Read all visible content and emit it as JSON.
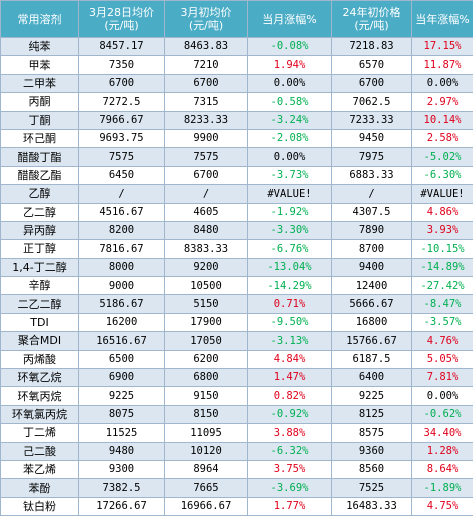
{
  "headers": [
    "常用溶剂",
    "3月28日均价\n(元/吨)",
    "3月初均价\n(元/吨)",
    "当月涨幅%",
    "24年初价格\n(元/吨)",
    "当年涨幅%"
  ],
  "rows": [
    {
      "name": "纯苯",
      "p1": "8457.17",
      "p2": "8463.83",
      "m": "-0.08%",
      "p3": "7218.83",
      "y": "17.15%"
    },
    {
      "name": "甲苯",
      "p1": "7350",
      "p2": "7210",
      "m": "1.94%",
      "p3": "6570",
      "y": "11.87%"
    },
    {
      "name": "二甲苯",
      "p1": "6700",
      "p2": "6700",
      "m": "0.00%",
      "p3": "6700",
      "y": "0.00%"
    },
    {
      "name": "丙酮",
      "p1": "7272.5",
      "p2": "7315",
      "m": "-0.58%",
      "p3": "7062.5",
      "y": "2.97%"
    },
    {
      "name": "丁酮",
      "p1": "7966.67",
      "p2": "8233.33",
      "m": "-3.24%",
      "p3": "7233.33",
      "y": "10.14%"
    },
    {
      "name": "环己酮",
      "p1": "9693.75",
      "p2": "9900",
      "m": "-2.08%",
      "p3": "9450",
      "y": "2.58%"
    },
    {
      "name": "醋酸丁酯",
      "p1": "7575",
      "p2": "7575",
      "m": "0.00%",
      "p3": "7975",
      "y": "-5.02%"
    },
    {
      "name": "醋酸乙酯",
      "p1": "6450",
      "p2": "6700",
      "m": "-3.73%",
      "p3": "6883.33",
      "y": "-6.30%"
    },
    {
      "name": "乙醇",
      "p1": "/",
      "p2": "/",
      "m": "#VALUE!",
      "p3": "/",
      "y": "#VALUE!"
    },
    {
      "name": "乙二醇",
      "p1": "4516.67",
      "p2": "4605",
      "m": "-1.92%",
      "p3": "4307.5",
      "y": "4.86%"
    },
    {
      "name": "异丙醇",
      "p1": "8200",
      "p2": "8480",
      "m": "-3.30%",
      "p3": "7890",
      "y": "3.93%"
    },
    {
      "name": "正丁醇",
      "p1": "7816.67",
      "p2": "8383.33",
      "m": "-6.76%",
      "p3": "8700",
      "y": "-10.15%"
    },
    {
      "name": "1,4-丁二醇",
      "p1": "8000",
      "p2": "9200",
      "m": "-13.04%",
      "p3": "9400",
      "y": "-14.89%"
    },
    {
      "name": "辛醇",
      "p1": "9000",
      "p2": "10500",
      "m": "-14.29%",
      "p3": "12400",
      "y": "-27.42%"
    },
    {
      "name": "二乙二醇",
      "p1": "5186.67",
      "p2": "5150",
      "m": "0.71%",
      "p3": "5666.67",
      "y": "-8.47%"
    },
    {
      "name": "TDI",
      "p1": "16200",
      "p2": "17900",
      "m": "-9.50%",
      "p3": "16800",
      "y": "-3.57%"
    },
    {
      "name": "聚合MDI",
      "p1": "16516.67",
      "p2": "17050",
      "m": "-3.13%",
      "p3": "15766.67",
      "y": "4.76%"
    },
    {
      "name": "丙烯酸",
      "p1": "6500",
      "p2": "6200",
      "m": "4.84%",
      "p3": "6187.5",
      "y": "5.05%"
    },
    {
      "name": "环氧乙烷",
      "p1": "6900",
      "p2": "6800",
      "m": "1.47%",
      "p3": "6400",
      "y": "7.81%"
    },
    {
      "name": "环氧丙烷",
      "p1": "9225",
      "p2": "9150",
      "m": "0.82%",
      "p3": "9225",
      "y": "0.00%"
    },
    {
      "name": "环氧氯丙烷",
      "p1": "8075",
      "p2": "8150",
      "m": "-0.92%",
      "p3": "8125",
      "y": "-0.62%"
    },
    {
      "name": "丁二烯",
      "p1": "11525",
      "p2": "11095",
      "m": "3.88%",
      "p3": "8575",
      "y": "34.40%"
    },
    {
      "name": "己二酸",
      "p1": "9480",
      "p2": "10120",
      "m": "-6.32%",
      "p3": "9360",
      "y": "1.28%"
    },
    {
      "name": "苯乙烯",
      "p1": "9300",
      "p2": "8964",
      "m": "3.75%",
      "p3": "8560",
      "y": "8.64%"
    },
    {
      "name": "苯酚",
      "p1": "7382.5",
      "p2": "7665",
      "m": "-3.69%",
      "p3": "7525",
      "y": "-1.89%"
    },
    {
      "name": "钛白粉",
      "p1": "17266.67",
      "p2": "16966.67",
      "m": "1.77%",
      "p3": "16483.33",
      "y": "4.75%"
    }
  ],
  "colors": {
    "header_bg": "#4bacc6",
    "odd_row_bg": "#dbe6f1",
    "positive": "#e0001b",
    "negative": "#00b050"
  }
}
